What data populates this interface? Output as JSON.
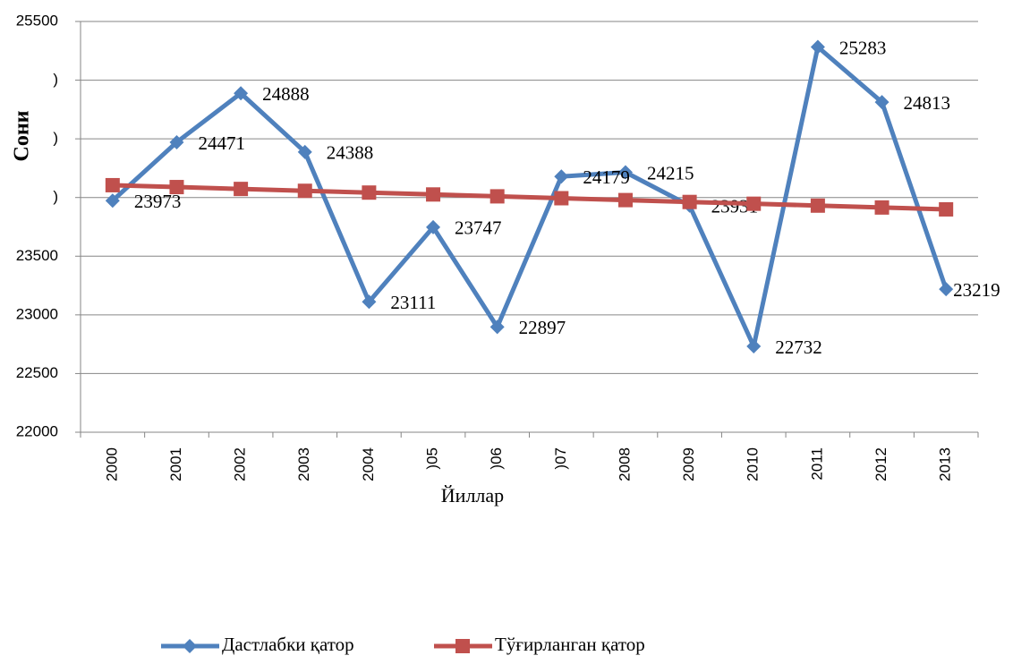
{
  "chart_data": {
    "type": "line",
    "y_label": "Сони",
    "x_label": "Йиллар",
    "categories": [
      "2000",
      "2001",
      "2002",
      "2003",
      "2004",
      ")05",
      ")06",
      ")07",
      "2008",
      "2009",
      "2010",
      "2011",
      "2012",
      "2013"
    ],
    "series": [
      {
        "name": "Дастлабки қатор",
        "color": "#4f81bd",
        "marker": "diamond",
        "values": [
          23973,
          24471,
          24888,
          24388,
          23111,
          23747,
          22897,
          24179,
          24215,
          23931,
          22732,
          25283,
          24813,
          23219
        ]
      },
      {
        "name": "Тўғирланган қатор",
        "color": "#c0504d",
        "marker": "square",
        "values": [
          24105,
          24089,
          24073,
          24057,
          24042,
          24026,
          24010,
          23994,
          23978,
          23962,
          23947,
          23931,
          23915,
          23899
        ]
      }
    ],
    "ylim": [
      22000,
      25500
    ],
    "yticks": [
      22000,
      22500,
      23000,
      23500,
      {
        "value": 24000,
        "label": ")"
      },
      {
        "value": 24500,
        "label": ")"
      },
      {
        "value": 25000,
        "label": ")"
      },
      25500
    ],
    "grid": true,
    "legend": "bottom"
  }
}
